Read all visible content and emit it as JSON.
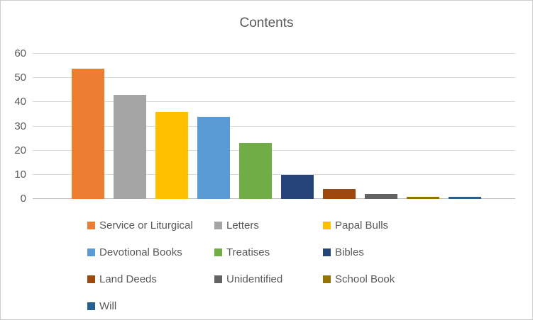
{
  "chart_data": {
    "type": "bar",
    "title": "Contents",
    "categories": [
      "Service or Liturgical",
      "Letters",
      "Papal Bulls",
      "Devotional Books",
      "Treatises",
      "Bibles",
      "Land Deeds",
      "Unidentified",
      "School Book",
      "Will"
    ],
    "values": [
      54,
      43,
      36,
      34,
      23,
      10,
      4,
      2,
      1,
      1
    ],
    "colors": [
      "#ED7D31",
      "#A5A5A5",
      "#FFC000",
      "#5B9BD5",
      "#70AD47",
      "#264478",
      "#9E480E",
      "#636363",
      "#997300",
      "#255E91"
    ],
    "xlabel": "",
    "ylabel": "",
    "ylim": [
      0,
      60
    ],
    "yticks": [
      0,
      10,
      20,
      30,
      40,
      50,
      60
    ],
    "grid": true,
    "legend_position": "bottom",
    "title_color": "#595959",
    "axis_text_color": "#595959",
    "gridline_color": "#D9D9D9"
  }
}
